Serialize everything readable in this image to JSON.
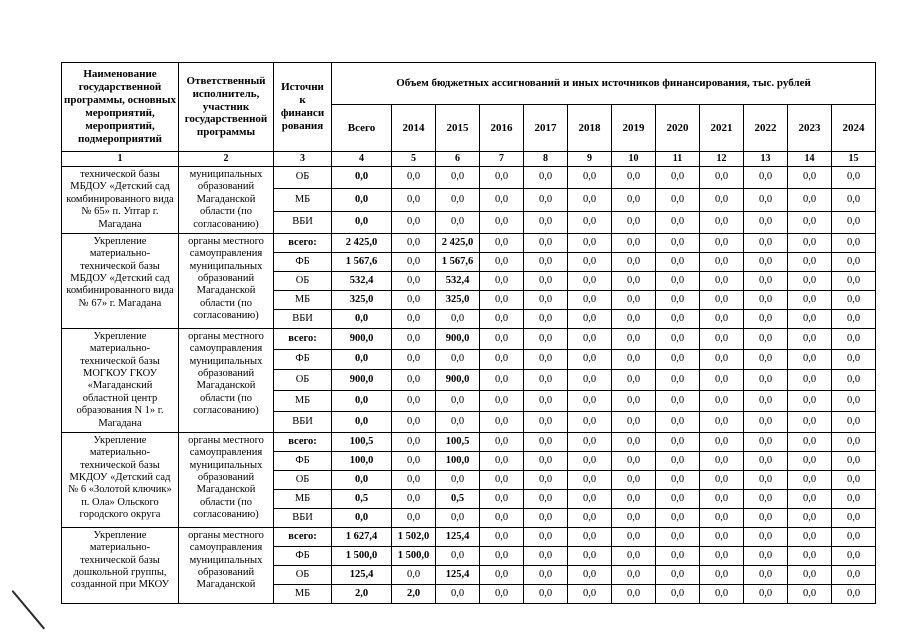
{
  "page": {
    "background": "#ffffff",
    "text_color": "#000000",
    "border_color": "#000000"
  },
  "table": {
    "header": {
      "program_col": "Наименование государственной программы, основных мероприятий, мероприятий, подмероприятий",
      "executor_col": "Ответственный исполнитель, участник государственной программы",
      "source_col": "Источни\nк\nфинанси\nрования",
      "volume_group": "Объем бюджетных ассигнований и иных источников финансирования, тыс. рублей",
      "year_cols": [
        "Всего",
        "2014",
        "2015",
        "2016",
        "2017",
        "2018",
        "2019",
        "2020",
        "2021",
        "2022",
        "2023",
        "2024"
      ],
      "column_numbers": [
        "1",
        "2",
        "3",
        "4",
        "5",
        "6",
        "7",
        "8",
        "9",
        "10",
        "11",
        "12",
        "13",
        "14",
        "15"
      ]
    },
    "blocks": [
      {
        "name": "технической базы МБДОУ «Детский сад комбинированного вида № 65» п. Уптар г. Магадана",
        "executor": "муниципальных образований Магаданской области (по согласованию)",
        "rows": [
          {
            "source": "ОБ",
            "values": [
              "0,0",
              "0,0",
              "0,0",
              "0,0",
              "0,0",
              "0,0",
              "0,0",
              "0,0",
              "0,0",
              "0,0",
              "0,0",
              "0,0"
            ]
          },
          {
            "source": "МБ",
            "values": [
              "0,0",
              "0,0",
              "0,0",
              "0,0",
              "0,0",
              "0,0",
              "0,0",
              "0,0",
              "0,0",
              "0,0",
              "0,0",
              "0,0"
            ]
          },
          {
            "source": "ВБИ",
            "values": [
              "0,0",
              "0,0",
              "0,0",
              "0,0",
              "0,0",
              "0,0",
              "0,0",
              "0,0",
              "0,0",
              "0,0",
              "0,0",
              "0,0"
            ]
          }
        ]
      },
      {
        "name": "Укрепление материально-технической базы МБДОУ «Детский сад комбинированного вида № 67» г. Магадана",
        "executor": "органы местного самоуправления муниципальных образований Магаданской области (по согласованию)",
        "rows": [
          {
            "source": "всего:",
            "values": [
              "2 425,0",
              "0,0",
              "2 425,0",
              "0,0",
              "0,0",
              "0,0",
              "0,0",
              "0,0",
              "0,0",
              "0,0",
              "0,0",
              "0,0"
            ]
          },
          {
            "source": "ФБ",
            "values": [
              "1 567,6",
              "0,0",
              "1 567,6",
              "0,0",
              "0,0",
              "0,0",
              "0,0",
              "0,0",
              "0,0",
              "0,0",
              "0,0",
              "0,0"
            ]
          },
          {
            "source": "ОБ",
            "values": [
              "532,4",
              "0,0",
              "532,4",
              "0,0",
              "0,0",
              "0,0",
              "0,0",
              "0,0",
              "0,0",
              "0,0",
              "0,0",
              "0,0"
            ]
          },
          {
            "source": "МБ",
            "values": [
              "325,0",
              "0,0",
              "325,0",
              "0,0",
              "0,0",
              "0,0",
              "0,0",
              "0,0",
              "0,0",
              "0,0",
              "0,0",
              "0,0"
            ]
          },
          {
            "source": "ВБИ",
            "values": [
              "0,0",
              "0,0",
              "0,0",
              "0,0",
              "0,0",
              "0,0",
              "0,0",
              "0,0",
              "0,0",
              "0,0",
              "0,0",
              "0,0"
            ]
          }
        ]
      },
      {
        "name": "Укрепление материально-технической базы МОГКОУ ГКОУ «Магаданский областной центр образования N 1» г. Магадана",
        "executor": "органы местного самоуправления муниципальных образований Магаданской области (по согласованию)",
        "rows": [
          {
            "source": "всего:",
            "values": [
              "900,0",
              "0,0",
              "900,0",
              "0,0",
              "0,0",
              "0,0",
              "0,0",
              "0,0",
              "0,0",
              "0,0",
              "0,0",
              "0,0"
            ]
          },
          {
            "source": "ФБ",
            "values": [
              "0,0",
              "0,0",
              "0,0",
              "0,0",
              "0,0",
              "0,0",
              "0,0",
              "0,0",
              "0,0",
              "0,0",
              "0,0",
              "0,0"
            ]
          },
          {
            "source": "ОБ",
            "values": [
              "900,0",
              "0,0",
              "900,0",
              "0,0",
              "0,0",
              "0,0",
              "0,0",
              "0,0",
              "0,0",
              "0,0",
              "0,0",
              "0,0"
            ]
          },
          {
            "source": "МБ",
            "values": [
              "0,0",
              "0,0",
              "0,0",
              "0,0",
              "0,0",
              "0,0",
              "0,0",
              "0,0",
              "0,0",
              "0,0",
              "0,0",
              "0,0"
            ]
          },
          {
            "source": "ВБИ",
            "values": [
              "0,0",
              "0,0",
              "0,0",
              "0,0",
              "0,0",
              "0,0",
              "0,0",
              "0,0",
              "0,0",
              "0,0",
              "0,0",
              "0,0"
            ]
          }
        ]
      },
      {
        "name": "Укрепление материально-технической базы МКДОУ «Детский сад № 6 «Золотой ключик» п. Ола» Ольского городского округа",
        "executor": "органы местного самоуправления муниципальных образований Магаданской области (по согласованию)",
        "rows": [
          {
            "source": "всего:",
            "values": [
              "100,5",
              "0,0",
              "100,5",
              "0,0",
              "0,0",
              "0,0",
              "0,0",
              "0,0",
              "0,0",
              "0,0",
              "0,0",
              "0,0"
            ]
          },
          {
            "source": "ФБ",
            "values": [
              "100,0",
              "0,0",
              "100,0",
              "0,0",
              "0,0",
              "0,0",
              "0,0",
              "0,0",
              "0,0",
              "0,0",
              "0,0",
              "0,0"
            ]
          },
          {
            "source": "ОБ",
            "values": [
              "0,0",
              "0,0",
              "0,0",
              "0,0",
              "0,0",
              "0,0",
              "0,0",
              "0,0",
              "0,0",
              "0,0",
              "0,0",
              "0,0"
            ]
          },
          {
            "source": "МБ",
            "values": [
              "0,5",
              "0,0",
              "0,5",
              "0,0",
              "0,0",
              "0,0",
              "0,0",
              "0,0",
              "0,0",
              "0,0",
              "0,0",
              "0,0"
            ]
          },
          {
            "source": "ВБИ",
            "values": [
              "0,0",
              "0,0",
              "0,0",
              "0,0",
              "0,0",
              "0,0",
              "0,0",
              "0,0",
              "0,0",
              "0,0",
              "0,0",
              "0,0"
            ]
          }
        ]
      },
      {
        "name": "Укрепление материально-технической базы дошкольной группы, созданной при МКОУ",
        "executor": "органы местного самоуправления муниципальных образований Магаданской",
        "rows": [
          {
            "source": "всего:",
            "values": [
              "1 627,4",
              "1 502,0",
              "125,4",
              "0,0",
              "0,0",
              "0,0",
              "0,0",
              "0,0",
              "0,0",
              "0,0",
              "0,0",
              "0,0"
            ]
          },
          {
            "source": "ФБ",
            "values": [
              "1 500,0",
              "1 500,0",
              "0,0",
              "0,0",
              "0,0",
              "0,0",
              "0,0",
              "0,0",
              "0,0",
              "0,0",
              "0,0",
              "0,0"
            ]
          },
          {
            "source": "ОБ",
            "values": [
              "125,4",
              "0,0",
              "125,4",
              "0,0",
              "0,0",
              "0,0",
              "0,0",
              "0,0",
              "0,0",
              "0,0",
              "0,0",
              "0,0"
            ]
          },
          {
            "source": "МБ",
            "values": [
              "2,0",
              "2,0",
              "0,0",
              "0,0",
              "0,0",
              "0,0",
              "0,0",
              "0,0",
              "0,0",
              "0,0",
              "0,0",
              "0,0"
            ]
          }
        ]
      }
    ]
  }
}
